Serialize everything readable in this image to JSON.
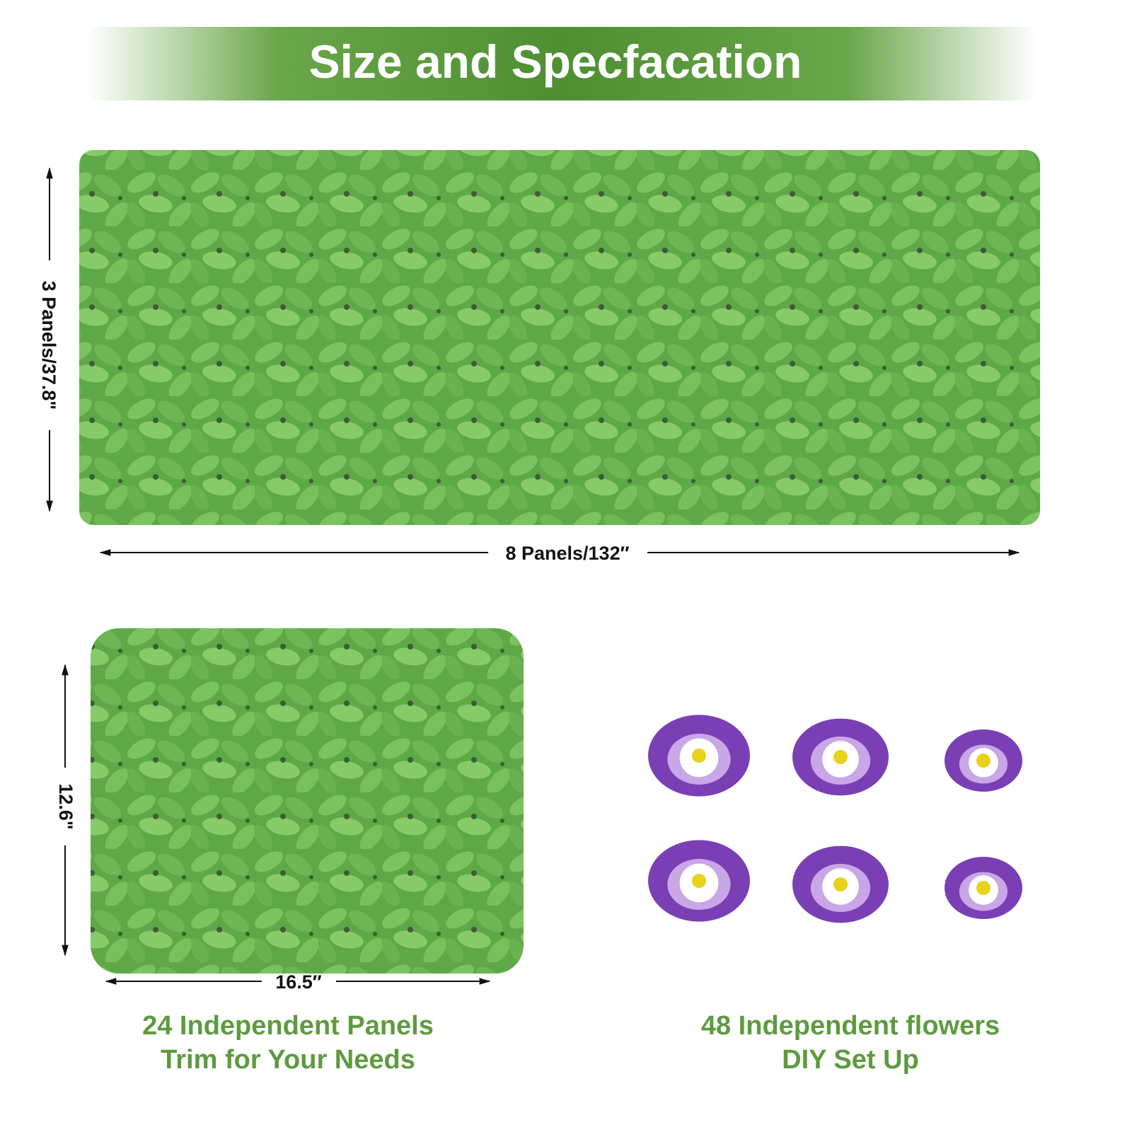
{
  "header": {
    "title": "Size and Specfacation"
  },
  "full_fence": {
    "height_label": "3 Panels/37.8\"",
    "width_label": "8 Panels/132″"
  },
  "single_panel": {
    "height_label": "12.6\"",
    "width_label": "16.5″",
    "caption": [
      "24 Independent Panels",
      "Trim for Your Needs"
    ]
  },
  "flowers": {
    "caption": [
      "48 Independent flowers",
      "DIY Set Up"
    ]
  }
}
